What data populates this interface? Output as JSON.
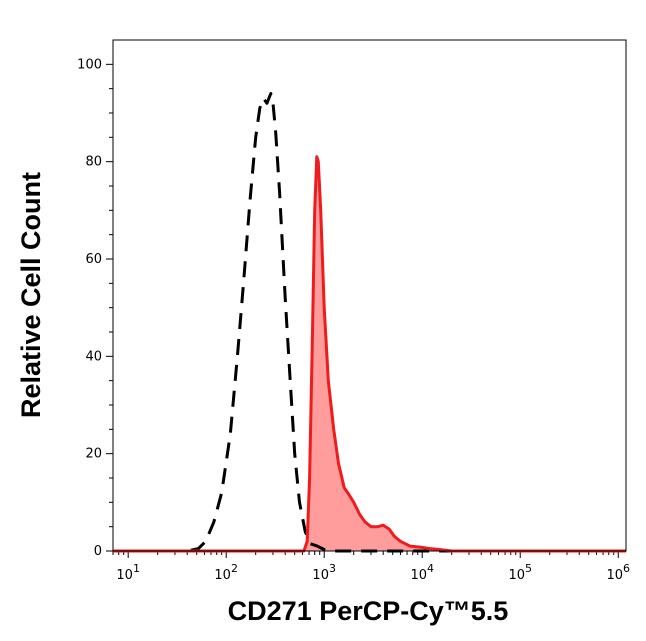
{
  "chart_data": {
    "type": "area",
    "title": "",
    "xlabel": "CD271 PerCP-Cy™5.5",
    "ylabel": "Relative Cell Count",
    "xscale": "log",
    "xlim": [
      7,
      1200000
    ],
    "ylim": [
      0,
      105
    ],
    "xticks": [
      {
        "value": 10,
        "base": "10",
        "exp": "1"
      },
      {
        "value": 100,
        "base": "10",
        "exp": "2"
      },
      {
        "value": 1000,
        "base": "10",
        "exp": "3"
      },
      {
        "value": 10000,
        "base": "10",
        "exp": "4"
      },
      {
        "value": 100000,
        "base": "10",
        "exp": "5"
      },
      {
        "value": 1000000,
        "base": "10",
        "exp": "6"
      }
    ],
    "yticks": [
      {
        "value": 0,
        "label": "0"
      },
      {
        "value": 20,
        "label": "20"
      },
      {
        "value": 40,
        "label": "40"
      },
      {
        "value": 60,
        "label": "60"
      },
      {
        "value": 80,
        "label": "80"
      },
      {
        "value": 100,
        "label": "100"
      }
    ],
    "grid": false,
    "legend": "none",
    "series": [
      {
        "style": "dashed",
        "color": "#000000",
        "fill": "none",
        "points": [
          [
            7,
            0
          ],
          [
            40,
            0
          ],
          [
            52,
            0.5
          ],
          [
            62,
            2
          ],
          [
            75,
            6
          ],
          [
            90,
            12
          ],
          [
            110,
            24
          ],
          [
            130,
            40
          ],
          [
            150,
            55
          ],
          [
            175,
            72
          ],
          [
            200,
            85
          ],
          [
            220,
            91
          ],
          [
            240,
            93
          ],
          [
            260,
            92
          ],
          [
            285,
            94
          ],
          [
            300,
            92
          ],
          [
            320,
            86
          ],
          [
            350,
            74
          ],
          [
            400,
            52
          ],
          [
            450,
            35
          ],
          [
            500,
            20
          ],
          [
            560,
            10
          ],
          [
            640,
            4
          ],
          [
            720,
            1.5
          ],
          [
            850,
            1
          ],
          [
            1000,
            0.3
          ],
          [
            1200,
            0
          ],
          [
            1200000,
            0
          ]
        ]
      },
      {
        "style": "solid",
        "color": "#ee1c1c",
        "fill": "#ff9c9c",
        "points": [
          [
            7,
            0
          ],
          [
            620,
            0
          ],
          [
            670,
            2
          ],
          [
            710,
            15
          ],
          [
            760,
            45
          ],
          [
            800,
            70
          ],
          [
            840,
            81
          ],
          [
            870,
            80
          ],
          [
            920,
            70
          ],
          [
            1000,
            50
          ],
          [
            1100,
            35
          ],
          [
            1250,
            25
          ],
          [
            1400,
            18
          ],
          [
            1600,
            13
          ],
          [
            1800,
            11.5
          ],
          [
            2000,
            10
          ],
          [
            2300,
            7.5
          ],
          [
            2600,
            6
          ],
          [
            3000,
            5
          ],
          [
            3500,
            5
          ],
          [
            4000,
            5.3
          ],
          [
            4600,
            4.5
          ],
          [
            5200,
            3
          ],
          [
            6000,
            2
          ],
          [
            7500,
            1
          ],
          [
            9500,
            0.8
          ],
          [
            12000,
            0.5
          ],
          [
            15000,
            0.3
          ],
          [
            20000,
            0
          ],
          [
            1200000,
            0
          ]
        ]
      }
    ]
  }
}
